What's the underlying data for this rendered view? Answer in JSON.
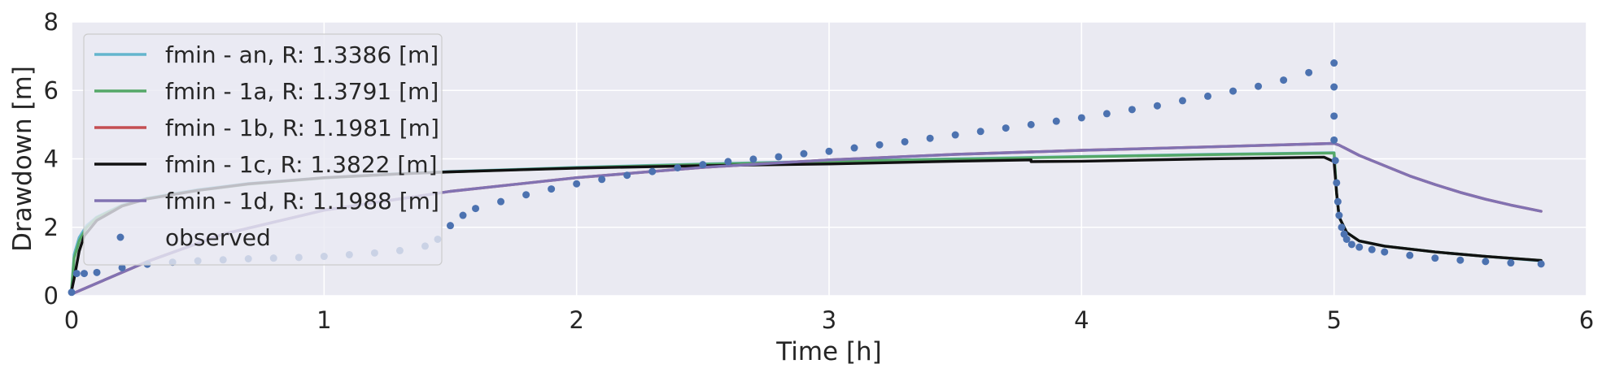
{
  "chart_data": {
    "type": "line",
    "title": "",
    "xlabel": "Time [h]",
    "ylabel": "Drawdown [m]",
    "xlim": [
      0,
      6
    ],
    "ylim": [
      0,
      8
    ],
    "xticks": [
      0,
      1,
      2,
      3,
      4,
      5,
      6
    ],
    "yticks": [
      0,
      2,
      4,
      6,
      8
    ],
    "grid": true,
    "background": "#eaeaf2",
    "legend_position": "upper-left",
    "series": [
      {
        "name": "fmin - an, R: 1.3386 [m]",
        "color": "#64b5cd",
        "style": "line",
        "x": [
          0,
          0.01,
          0.03,
          0.06,
          0.1,
          0.2,
          0.3,
          0.5,
          0.7,
          1.0,
          1.3,
          1.5,
          2.0,
          2.5,
          3.0,
          3.5,
          4.0,
          4.5,
          5.0,
          5.01,
          5.02,
          5.05,
          5.1,
          5.2,
          5.4,
          5.6,
          5.82
        ],
        "y": [
          0.2,
          1.2,
          1.7,
          2.05,
          2.3,
          2.65,
          2.85,
          3.1,
          3.28,
          3.45,
          3.57,
          3.63,
          3.75,
          3.85,
          3.93,
          4.0,
          4.07,
          4.13,
          4.18,
          3.0,
          2.3,
          1.85,
          1.6,
          1.45,
          1.28,
          1.15,
          1.02
        ]
      },
      {
        "name": "fmin - 1a, R: 1.3791 [m]",
        "color": "#55a868",
        "style": "line",
        "x": [
          0,
          0.01,
          0.03,
          0.06,
          0.1,
          0.2,
          0.3,
          0.5,
          0.7,
          1.0,
          1.3,
          1.5,
          2.0,
          2.5,
          3.0,
          3.5,
          4.0,
          4.5,
          5.0,
          5.01,
          5.02,
          5.05,
          5.1,
          5.2,
          5.4,
          5.6,
          5.82
        ],
        "y": [
          0.2,
          1.1,
          1.6,
          2.0,
          2.28,
          2.63,
          2.84,
          3.08,
          3.26,
          3.44,
          3.56,
          3.62,
          3.74,
          3.84,
          3.92,
          3.99,
          4.06,
          4.12,
          4.17,
          3.0,
          2.3,
          1.85,
          1.6,
          1.45,
          1.28,
          1.15,
          1.03
        ]
      },
      {
        "name": "fmin - 1b, R: 1.1981 [m]",
        "color": "#c44e52",
        "style": "line",
        "x": [
          0,
          0.3,
          0.6,
          1.0,
          1.5,
          2.0,
          2.5,
          3.0,
          3.5,
          4.0,
          4.5,
          5.0,
          5.02,
          5.1,
          5.2,
          5.3,
          5.4,
          5.5,
          5.6,
          5.7,
          5.82
        ],
        "y": [
          0.05,
          1.0,
          1.8,
          2.5,
          3.05,
          3.45,
          3.75,
          3.97,
          4.13,
          4.25,
          4.35,
          4.45,
          4.4,
          4.1,
          3.8,
          3.5,
          3.25,
          3.02,
          2.82,
          2.65,
          2.47
        ]
      },
      {
        "name": "fmin - 1c, R: 1.3822 [m]",
        "color": "#111111",
        "style": "line",
        "x": [
          0,
          0.01,
          0.02,
          0.03,
          0.05,
          0.1,
          0.2,
          0.3,
          0.5,
          0.7,
          1.0,
          1.3,
          1.5,
          2.0,
          2.5,
          3.0,
          3.5,
          3.8,
          3.8,
          4.0,
          4.5,
          4.96,
          5.0,
          5.01,
          5.02,
          5.05,
          5.1,
          5.2,
          5.4,
          5.6,
          5.82
        ],
        "y": [
          0.15,
          0.5,
          0.9,
          1.3,
          1.75,
          2.2,
          2.62,
          2.83,
          3.08,
          3.27,
          3.45,
          3.56,
          3.62,
          3.73,
          3.8,
          3.85,
          3.93,
          3.97,
          3.92,
          3.93,
          4.0,
          4.05,
          3.92,
          3.0,
          2.3,
          1.85,
          1.6,
          1.45,
          1.28,
          1.15,
          1.03
        ]
      },
      {
        "name": "fmin - 1d, R: 1.1988 [m]",
        "color": "#8172b2",
        "style": "line",
        "x": [
          0,
          0.3,
          0.6,
          1.0,
          1.5,
          2.0,
          2.5,
          3.0,
          3.5,
          4.0,
          4.5,
          5.0,
          5.02,
          5.1,
          5.2,
          5.3,
          5.4,
          5.5,
          5.6,
          5.7,
          5.82
        ],
        "y": [
          0.05,
          1.0,
          1.8,
          2.5,
          3.05,
          3.45,
          3.75,
          3.97,
          4.13,
          4.25,
          4.35,
          4.45,
          4.4,
          4.1,
          3.8,
          3.5,
          3.25,
          3.02,
          2.82,
          2.65,
          2.47
        ]
      },
      {
        "name": "observed",
        "color": "#4c72b0",
        "style": "dots",
        "x": [
          0,
          0.02,
          0.05,
          0.1,
          0.2,
          0.3,
          0.4,
          0.5,
          0.6,
          0.7,
          0.8,
          0.9,
          1.0,
          1.1,
          1.2,
          1.3,
          1.4,
          1.45,
          1.5,
          1.55,
          1.6,
          1.7,
          1.8,
          1.9,
          2.0,
          2.1,
          2.2,
          2.3,
          2.4,
          2.5,
          2.6,
          2.7,
          2.8,
          2.9,
          3.0,
          3.1,
          3.2,
          3.3,
          3.4,
          3.5,
          3.6,
          3.7,
          3.8,
          3.9,
          4.0,
          4.1,
          4.2,
          4.3,
          4.4,
          4.5,
          4.6,
          4.7,
          4.8,
          4.9,
          5.0,
          5.0,
          5.0,
          5.0,
          5.005,
          5.01,
          5.015,
          5.02,
          5.03,
          5.04,
          5.05,
          5.07,
          5.1,
          5.15,
          5.2,
          5.3,
          5.4,
          5.5,
          5.6,
          5.7,
          5.82
        ],
        "y": [
          0.1,
          0.65,
          0.65,
          0.68,
          0.82,
          0.92,
          0.98,
          1.02,
          1.05,
          1.08,
          1.1,
          1.12,
          1.15,
          1.2,
          1.25,
          1.32,
          1.45,
          1.65,
          2.05,
          2.35,
          2.55,
          2.75,
          2.95,
          3.12,
          3.27,
          3.4,
          3.52,
          3.63,
          3.74,
          3.83,
          3.92,
          3.99,
          4.06,
          4.15,
          4.22,
          4.32,
          4.41,
          4.5,
          4.6,
          4.7,
          4.8,
          4.9,
          5.0,
          5.1,
          5.2,
          5.32,
          5.44,
          5.55,
          5.7,
          5.83,
          5.98,
          6.12,
          6.3,
          6.52,
          6.8,
          6.1,
          5.25,
          4.55,
          3.95,
          3.3,
          2.75,
          2.35,
          2.0,
          1.8,
          1.65,
          1.5,
          1.42,
          1.35,
          1.28,
          1.18,
          1.1,
          1.04,
          1.0,
          0.96,
          0.93
        ]
      }
    ]
  }
}
